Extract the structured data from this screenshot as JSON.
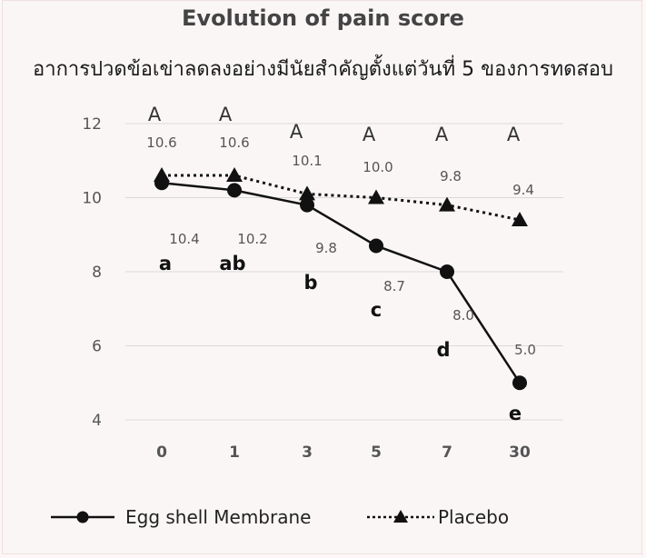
{
  "chart_data": {
    "type": "line",
    "title": "Evolution of pain score",
    "subtitle": "อาการปวดข้อเข่าลดลงอย่างมีนัยสำคัญตั้งแต่วันที่ 5 ของการทดสอบ",
    "categories": [
      "0",
      "1",
      "3",
      "5",
      "7",
      "30"
    ],
    "ylim": [
      4,
      12
    ],
    "yticks": [
      "4",
      "6",
      "8",
      "10",
      "12"
    ],
    "grid": true,
    "legend_placement": "bottom",
    "series": [
      {
        "name": "Egg shell Membrane",
        "style": "solid-circle",
        "color": "#111111",
        "values": [
          10.4,
          10.2,
          9.8,
          8.7,
          8.0,
          5.0
        ],
        "value_labels": [
          "10.4",
          "10.2",
          "9.8",
          "8.7",
          "8.0",
          "5.0"
        ],
        "significance": [
          "a",
          "ab",
          "b",
          "c",
          "d",
          "e"
        ]
      },
      {
        "name": "Placebo",
        "style": "dotted-triangle",
        "color": "#111111",
        "values": [
          10.6,
          10.6,
          10.1,
          10.0,
          9.8,
          9.4
        ],
        "value_labels": [
          "10.6",
          "10.6",
          "10.1",
          "10.0",
          "9.8",
          "9.4"
        ],
        "significance": [
          "A",
          "A",
          "A",
          "A",
          "A",
          "A"
        ]
      }
    ]
  }
}
